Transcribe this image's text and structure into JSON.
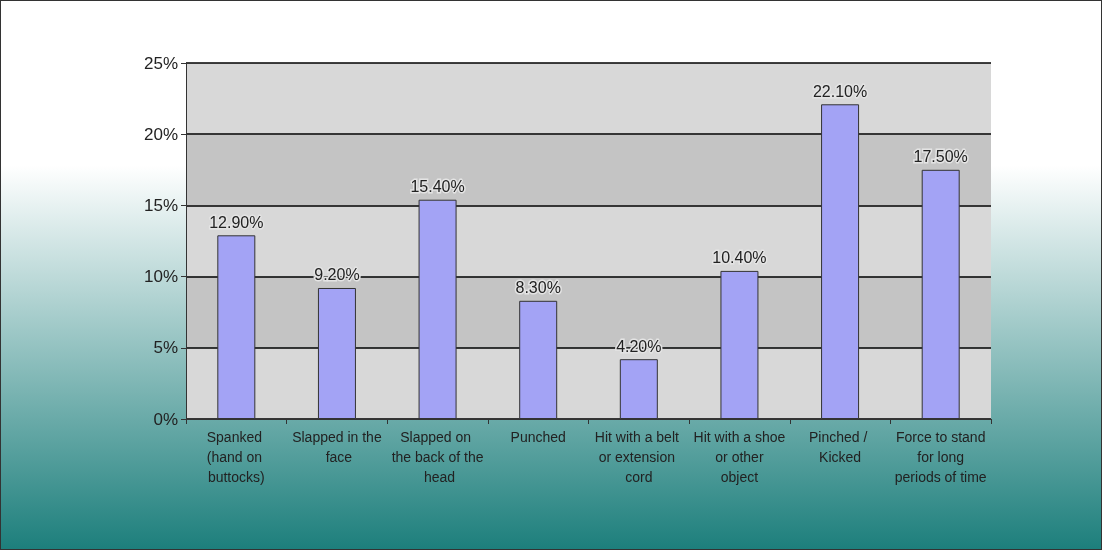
{
  "chart_data": {
    "type": "bar",
    "categories": [
      "Spanked (hand on buttocks)",
      "Slapped in the face",
      "Slapped on the back of the head",
      "Punched",
      "Hit with a belt or extension cord",
      "Hit with a shoe or other object",
      "Pinched / Kicked",
      "Force to stand for long periods of time"
    ],
    "values": [
      12.9,
      9.2,
      15.4,
      8.3,
      4.2,
      10.4,
      22.1,
      17.5
    ],
    "value_labels": [
      "12.90%",
      "9.20%",
      "15.40%",
      "8.30%",
      "4.20%",
      "10.40%",
      "22.10%",
      "17.50%"
    ],
    "color": "#a3a3f5",
    "ylim": [
      0,
      25
    ],
    "yticks": [
      {
        "value": 0,
        "label": "0%"
      },
      {
        "value": 5,
        "label": "5%"
      },
      {
        "value": 10,
        "label": "10%"
      },
      {
        "value": 15,
        "label": "15%"
      },
      {
        "value": 20,
        "label": "20%"
      },
      {
        "value": 25,
        "label": "25%"
      }
    ],
    "grid": "y"
  }
}
